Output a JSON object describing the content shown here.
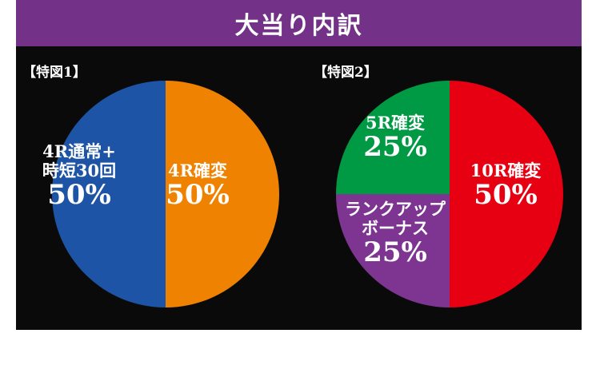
{
  "header": {
    "title": "大当り内訳"
  },
  "colors": {
    "header_bg": "#733188",
    "panel_bg": "#0a0a0a"
  },
  "chart_data": [
    {
      "type": "pie",
      "title": "【特図1】",
      "slices": [
        {
          "label_lines": [
            "4R確変"
          ],
          "pct_label": "50%",
          "value": 50,
          "color": "#ef8200"
        },
        {
          "label_lines": [
            "4R通常+",
            "時短30回"
          ],
          "pct_label": "50%",
          "value": 50,
          "color": "#1d54a5"
        }
      ]
    },
    {
      "type": "pie",
      "title": "【特図2】",
      "slices": [
        {
          "label_lines": [
            "10R確変"
          ],
          "pct_label": "50%",
          "value": 50,
          "color": "#e60012"
        },
        {
          "label_lines": [
            "ランクアップ",
            "ボーナス"
          ],
          "pct_label": "25%",
          "value": 25,
          "color": "#7d3591"
        },
        {
          "label_lines": [
            "5R確変"
          ],
          "pct_label": "25%",
          "value": 25,
          "color": "#009944"
        }
      ]
    }
  ]
}
